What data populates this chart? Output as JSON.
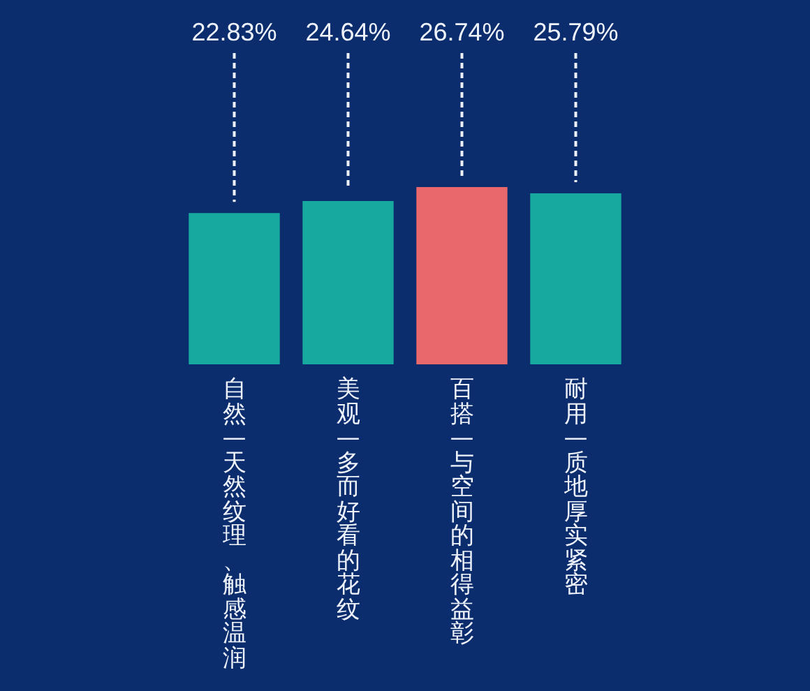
{
  "chart_data": {
    "type": "bar",
    "categories": [
      "自然—天然纹理、触感温润",
      "美观—多而好看的花纹",
      "百搭—与空间的相得益彰",
      "耐用—质地厚实紧密"
    ],
    "values": [
      22.83,
      24.64,
      26.74,
      25.79
    ],
    "colors": [
      "#17a8a0",
      "#17a8a0",
      "#e8686b",
      "#17a8a0"
    ],
    "value_labels": [
      "22.83%",
      "24.64%",
      "26.74%",
      "25.79%"
    ],
    "tick_labels": "x"
  }
}
